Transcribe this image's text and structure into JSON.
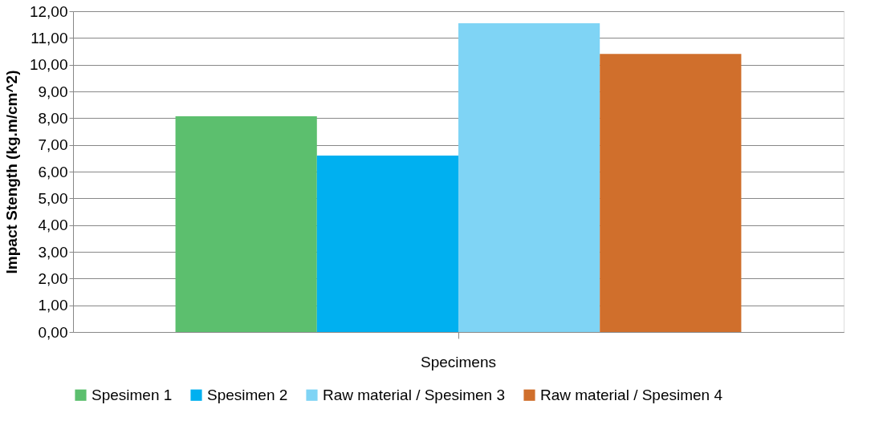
{
  "chart_data": {
    "type": "bar",
    "ylabel": "Impact Stength (kg.m/cm^2)",
    "categories": [
      "Specimens"
    ],
    "series": [
      {
        "name": "Spesimen 1",
        "color": "#5cbf6e",
        "values": [
          8.07
        ]
      },
      {
        "name": "Spesimen 2",
        "color": "#00b0f0",
        "values": [
          6.6
        ]
      },
      {
        "name": "Raw material / Spesimen 3",
        "color": "#7fd4f5",
        "values": [
          11.55
        ]
      },
      {
        "name": "Raw material / Spesimen 4",
        "color": "#d06f2c",
        "values": [
          10.4
        ]
      }
    ],
    "ylim": [
      0,
      12
    ],
    "yticks": [
      {
        "value": 0,
        "label": "0,00"
      },
      {
        "value": 1,
        "label": "1,00"
      },
      {
        "value": 2,
        "label": "2,00"
      },
      {
        "value": 3,
        "label": "3,00"
      },
      {
        "value": 4,
        "label": "4,00"
      },
      {
        "value": 5,
        "label": "5,00"
      },
      {
        "value": 6,
        "label": "6,00"
      },
      {
        "value": 7,
        "label": "7,00"
      },
      {
        "value": 8,
        "label": "8,00"
      },
      {
        "value": 9,
        "label": "9,00"
      },
      {
        "value": 10,
        "label": "10,00"
      },
      {
        "value": 11,
        "label": "11,00"
      },
      {
        "value": 12,
        "label": "12,00"
      }
    ],
    "grid": "y",
    "legend": "bottom"
  }
}
